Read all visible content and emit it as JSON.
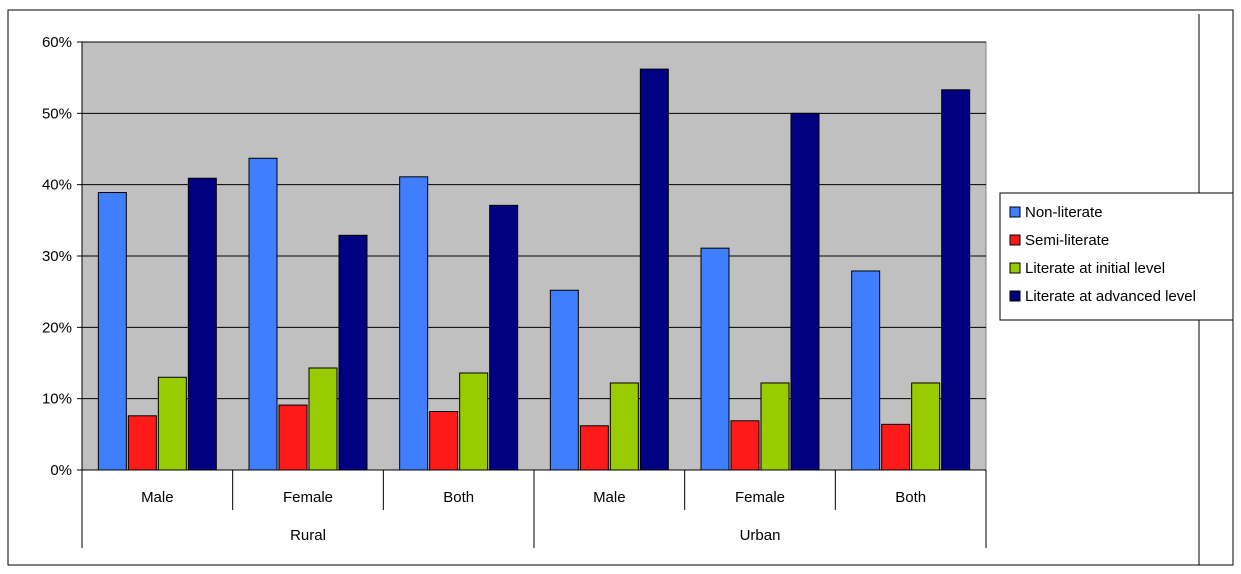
{
  "chart_data": {
    "type": "bar",
    "title": "",
    "xlabel": "",
    "ylabel": "",
    "ylim": [
      0,
      0.6
    ],
    "yticks": [
      "0%",
      "10%",
      "20%",
      "30%",
      "40%",
      "50%",
      "60%"
    ],
    "grid": true,
    "legend_position": "right",
    "categories": [
      "Male",
      "Female",
      "Both",
      "Male",
      "Female",
      "Both"
    ],
    "groups": [
      {
        "label": "Rural",
        "span": 3
      },
      {
        "label": "Urban",
        "span": 3
      }
    ],
    "series": [
      {
        "name": "Non-literate",
        "color": "#3f7fff",
        "values": [
          0.389,
          0.437,
          0.411,
          0.252,
          0.311,
          0.279
        ]
      },
      {
        "name": "Semi-literate",
        "color": "#ff1a1a",
        "values": [
          0.076,
          0.091,
          0.082,
          0.062,
          0.069,
          0.064
        ]
      },
      {
        "name": "Literate at initial level",
        "color": "#99cc00",
        "values": [
          0.13,
          0.143,
          0.136,
          0.122,
          0.122,
          0.122
        ]
      },
      {
        "name": "Literate at advanced level",
        "color": "#000080",
        "values": [
          0.409,
          0.329,
          0.371,
          0.562,
          0.5,
          0.533
        ]
      }
    ],
    "plot_background": "#c0c0c0"
  }
}
